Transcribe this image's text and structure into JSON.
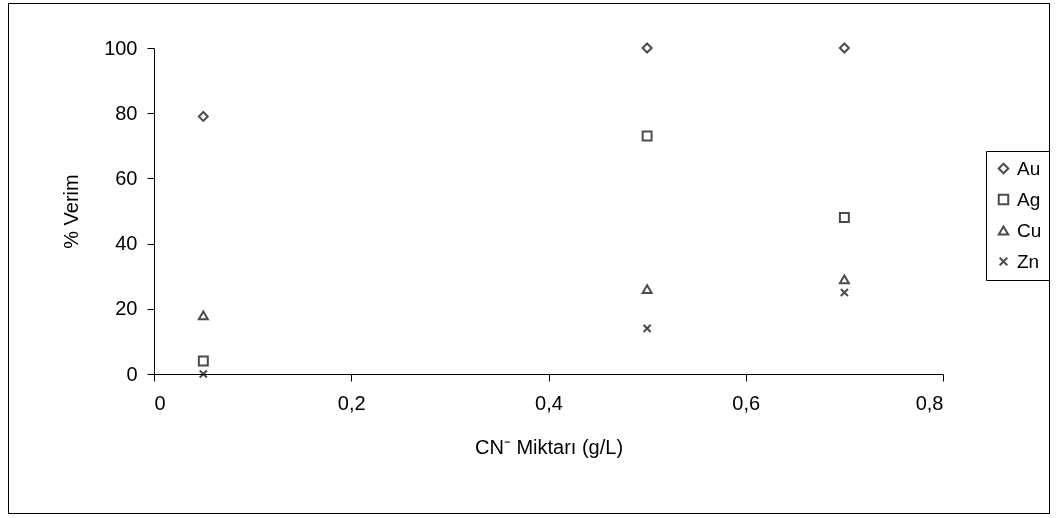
{
  "chart_data": {
    "type": "scatter",
    "xlabel": "CN⁻ Miktarı (g/L)",
    "ylabel": "% Verim",
    "x": [
      0.05,
      0.5,
      0.7
    ],
    "series": [
      {
        "name": "Au",
        "color": "#000000",
        "marker": "diamond",
        "values": [
          79,
          100,
          100
        ]
      },
      {
        "name": "Ag",
        "color": "#000000",
        "marker": "square",
        "values": [
          4,
          73,
          48
        ]
      },
      {
        "name": "Cu",
        "color": "#000000",
        "marker": "triangle",
        "values": [
          18,
          26,
          29
        ]
      },
      {
        "name": "Zn",
        "color": "#000000",
        "marker": "cross",
        "values": [
          0,
          14,
          25
        ]
      }
    ],
    "xlim": [
      0,
      0.8
    ],
    "xticks": [
      0,
      {
        "value": 0.2,
        "label": "0,2"
      },
      {
        "value": 0.4,
        "label": "0,4"
      },
      {
        "value": 0.6,
        "label": "0,6"
      },
      {
        "value": 0.8,
        "label": "0,8"
      }
    ],
    "ylim": [
      0,
      100
    ],
    "yticks": [
      0,
      20,
      40,
      60,
      80,
      100
    ],
    "grid": false,
    "legend": "right"
  }
}
